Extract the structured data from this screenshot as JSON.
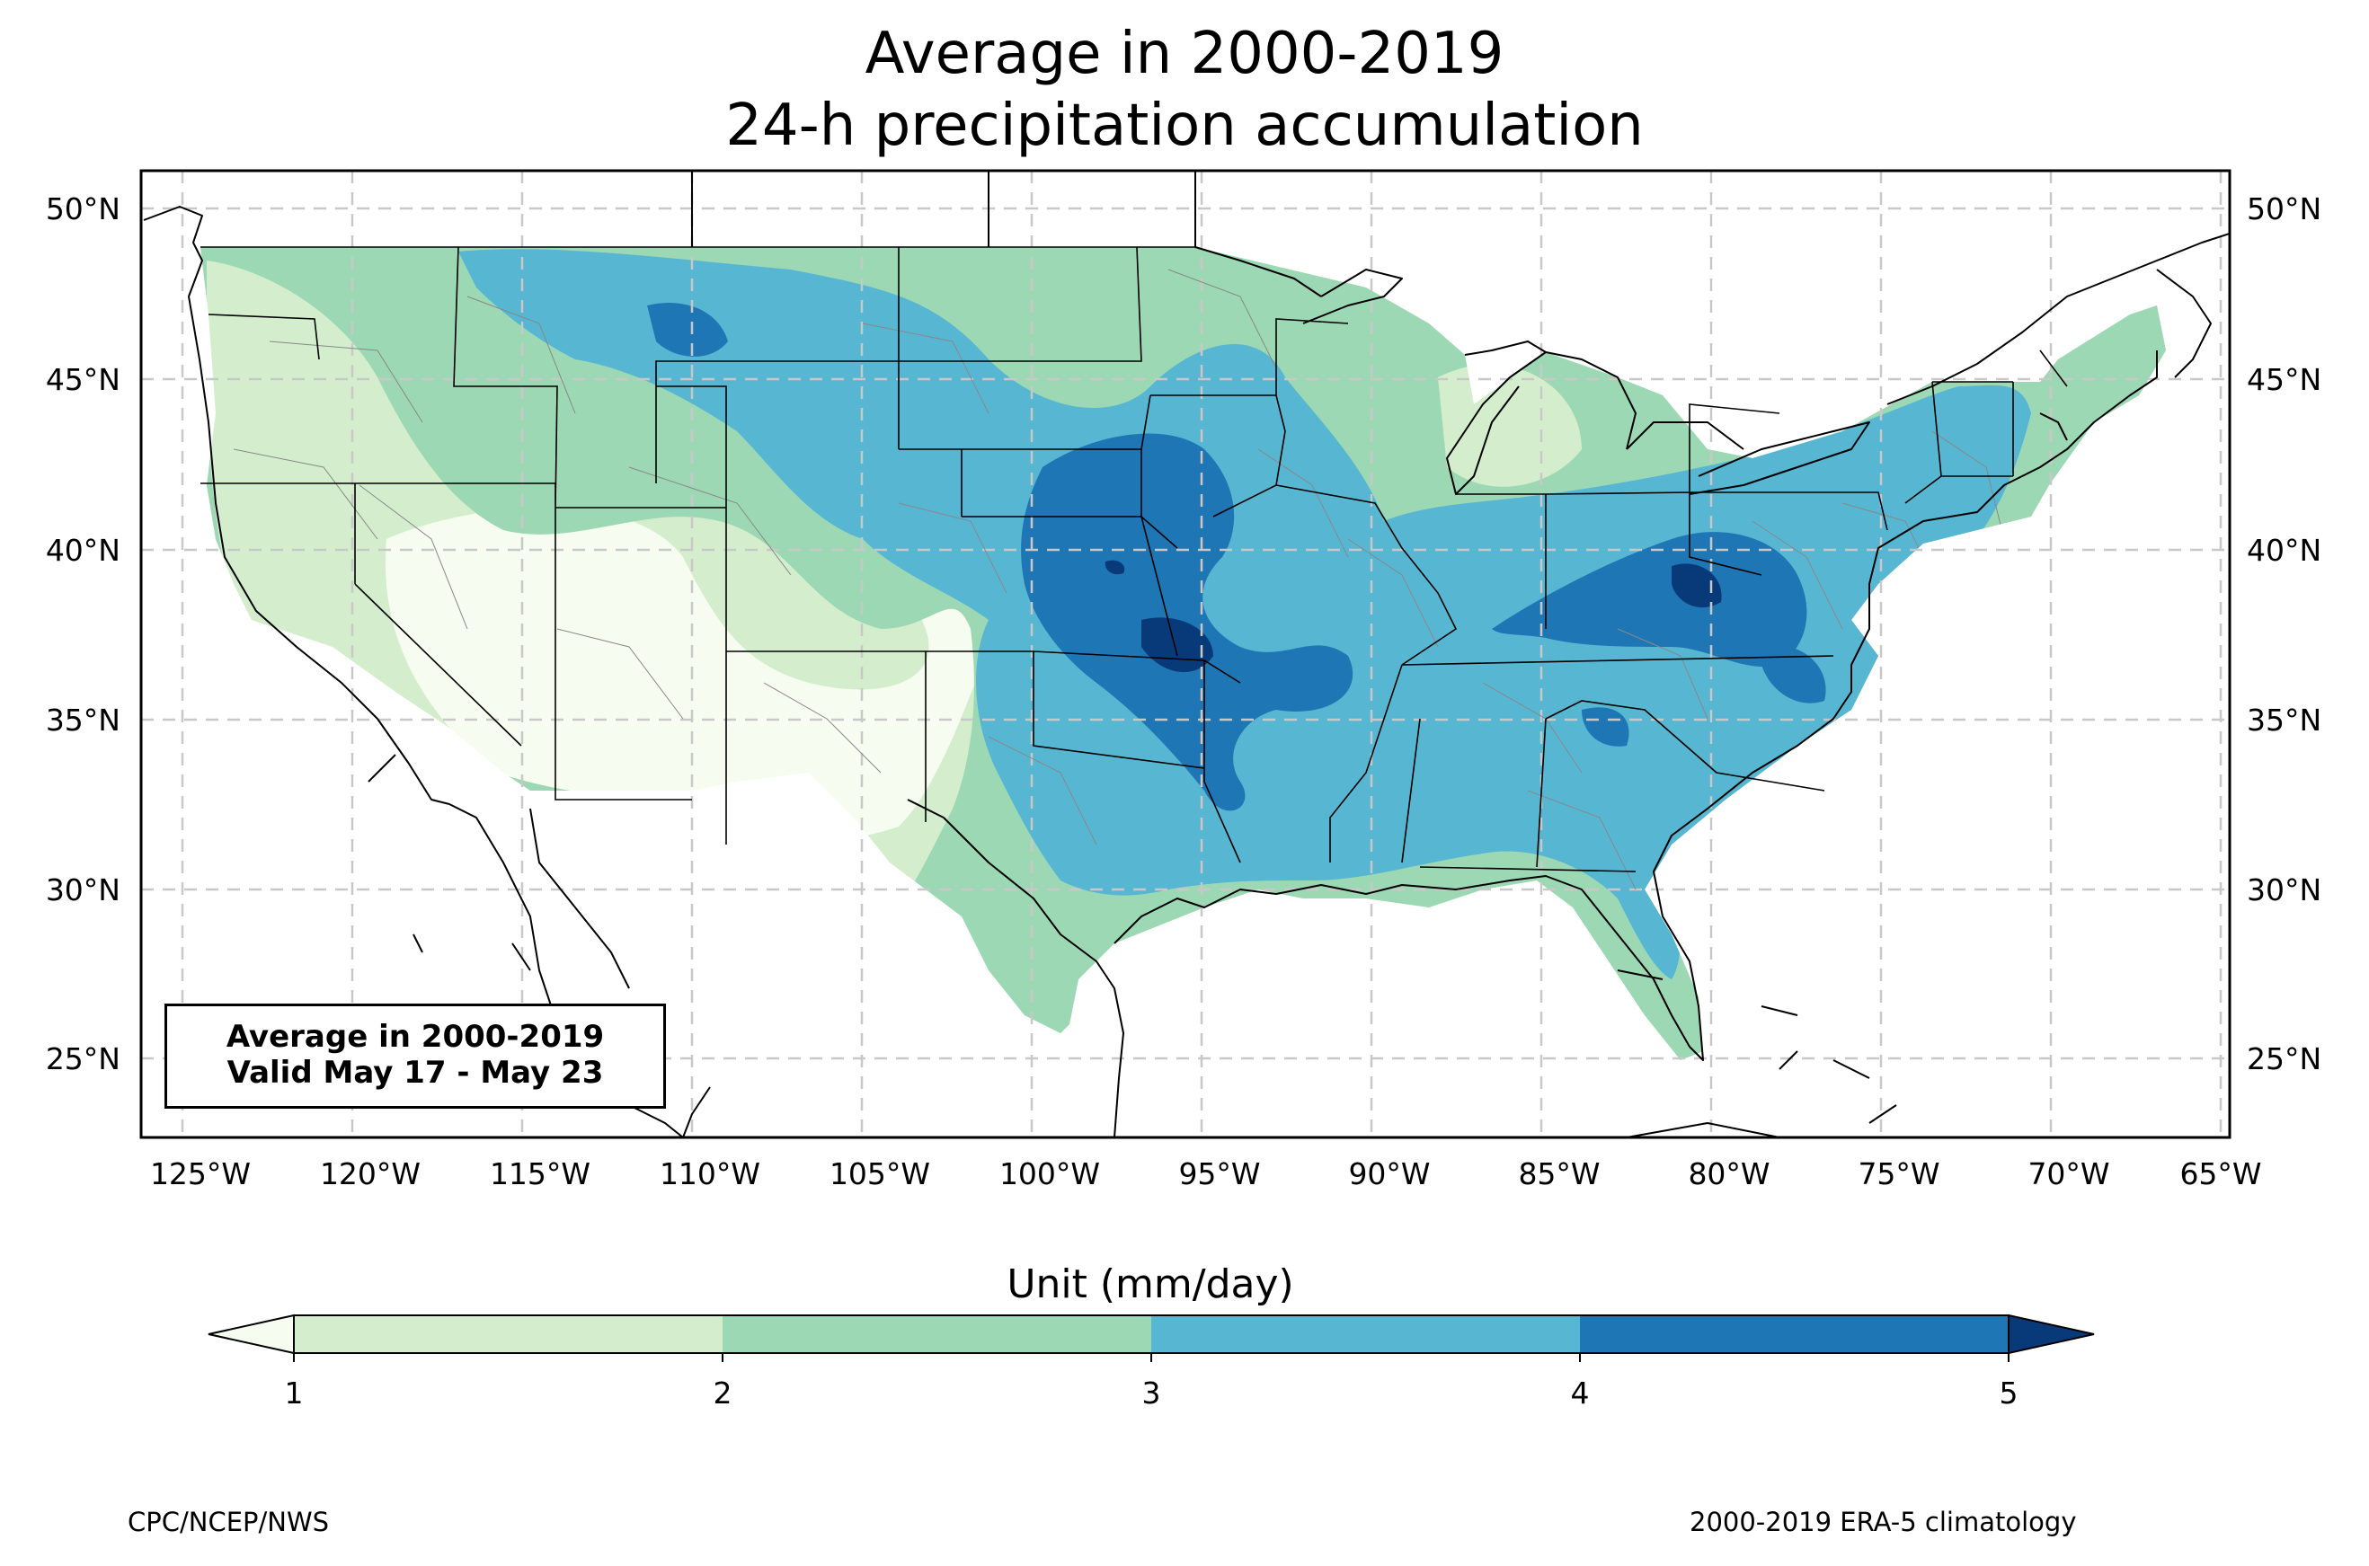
{
  "title": {
    "line1": "Average in 2000-2019",
    "line2": "24-h precipitation accumulation"
  },
  "map": {
    "lon_ticks": [
      "125°W",
      "120°W",
      "115°W",
      "110°W",
      "105°W",
      "100°W",
      "95°W",
      "90°W",
      "85°W",
      "80°W",
      "75°W",
      "70°W",
      "65°W"
    ],
    "lat_ticks": [
      "50°N",
      "45°N",
      "40°N",
      "35°N",
      "30°N",
      "25°N"
    ],
    "extent": {
      "lon": [
        -126.2,
        -64.8
      ],
      "lat": [
        22.8,
        51.2
      ]
    },
    "gridlines": true,
    "field": "24-h precipitation accumulation, 2000-2019 average"
  },
  "infobox": {
    "line1": "Average in 2000-2019",
    "line2": "Valid May 17 - May 23"
  },
  "colorbar": {
    "label": "Unit (mm/day)",
    "ticks": [
      "1",
      "2",
      "3",
      "4",
      "5"
    ],
    "levels": [
      1,
      2,
      3,
      4,
      5
    ],
    "colors": [
      "#f7fcf0",
      "#d4eecd",
      "#9dd8b5",
      "#57b6d2",
      "#1f76b5",
      "#083a7a"
    ],
    "extend": "both"
  },
  "footer": {
    "left": "CPC/NCEP/NWS",
    "right": "2000-2019 ERA-5 climatology"
  }
}
